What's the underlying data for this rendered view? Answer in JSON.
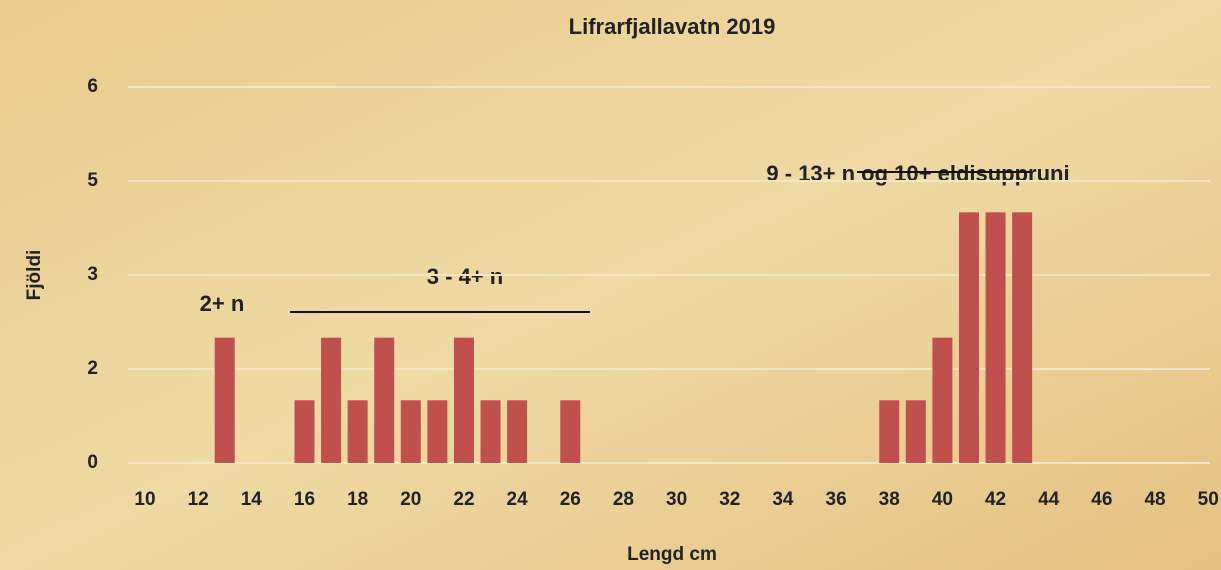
{
  "chart_data": {
    "type": "bar",
    "title": "Lifrarfjallavatn 2019",
    "x_label": "Lengd cm",
    "y_label": "Fjöldi",
    "categories": [
      "10",
      null,
      "12",
      null,
      "14",
      null,
      "16",
      null,
      "18",
      null,
      "20",
      null,
      "22",
      null,
      "24",
      null,
      "26",
      null,
      "28",
      null,
      "30",
      null,
      "32",
      null,
      "34",
      null,
      "36",
      null,
      "38",
      null,
      "40",
      null,
      "42",
      null,
      "44",
      null,
      "46",
      null,
      "48",
      null,
      "50"
    ],
    "values": [
      0,
      0,
      0,
      2,
      0,
      0,
      1,
      2,
      1,
      2,
      1,
      1,
      2,
      1,
      1,
      0,
      1,
      0,
      0,
      0,
      0,
      0,
      0,
      0,
      0,
      0,
      0,
      0,
      1,
      1,
      2,
      4,
      4,
      4,
      0,
      0,
      0,
      0,
      0,
      0,
      0
    ],
    "color": "#c0504d",
    "ylim": [
      0,
      6
    ],
    "yticks": [
      0,
      {
        "value": 1.5,
        "label": "2"
      },
      3,
      {
        "value": 4.5,
        "label": "5"
      },
      6
    ],
    "grid": true,
    "annotations": [
      "2+ n",
      "3 - 4+ n",
      "9 - 13+ n og 10+ eldisuppruni"
    ]
  }
}
